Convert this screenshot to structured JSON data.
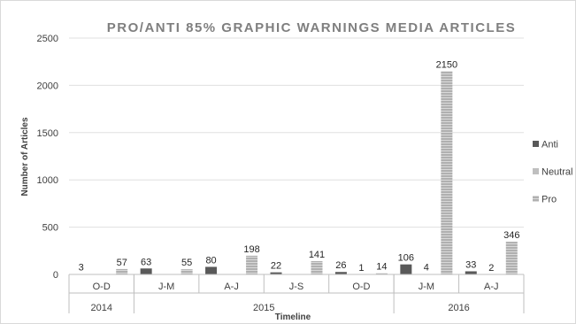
{
  "chart_data": {
    "type": "bar",
    "title": "PRO/ANTI 85% GRAPHIC WARNINGS MEDIA ARTICLES",
    "xlabel": "Timeline",
    "ylabel": "Number of Articles",
    "ylim": [
      0,
      2500
    ],
    "yticks": [
      "0",
      "500",
      "1000",
      "1500",
      "2000",
      "2500"
    ],
    "grid": true,
    "legend_position": "right",
    "categories": [
      {
        "label": "O-D",
        "group": "2014"
      },
      {
        "label": "J-M",
        "group": "2015"
      },
      {
        "label": "A-J",
        "group": "2015"
      },
      {
        "label": "J-S",
        "group": "2015"
      },
      {
        "label": "O-D",
        "group": "2015"
      },
      {
        "label": "J-M",
        "group": "2016"
      },
      {
        "label": "A-J",
        "group": "2016"
      }
    ],
    "groups": [
      {
        "label": "2014",
        "count": 1
      },
      {
        "label": "2015",
        "count": 4
      },
      {
        "label": "2016",
        "count": 2
      }
    ],
    "series": [
      {
        "name": "Anti",
        "values": [
          3,
          63,
          80,
          22,
          26,
          106,
          33
        ],
        "labels": [
          "3",
          "63",
          "80",
          "22",
          "26",
          "106",
          "33"
        ],
        "color": "#595959",
        "hatch": false
      },
      {
        "name": "Neutral",
        "values": [
          0,
          0,
          0,
          0,
          1,
          4,
          2
        ],
        "labels": [
          "",
          "",
          "",
          "",
          "1",
          "4",
          "2"
        ],
        "color": "#bfbfbf",
        "hatch": false
      },
      {
        "name": "Pro",
        "values": [
          57,
          55,
          198,
          141,
          14,
          2150,
          346
        ],
        "labels": [
          "57",
          "55",
          "198",
          "141",
          "14",
          "2150",
          "346"
        ],
        "color": "#a6a6a6",
        "hatch": true
      }
    ]
  }
}
